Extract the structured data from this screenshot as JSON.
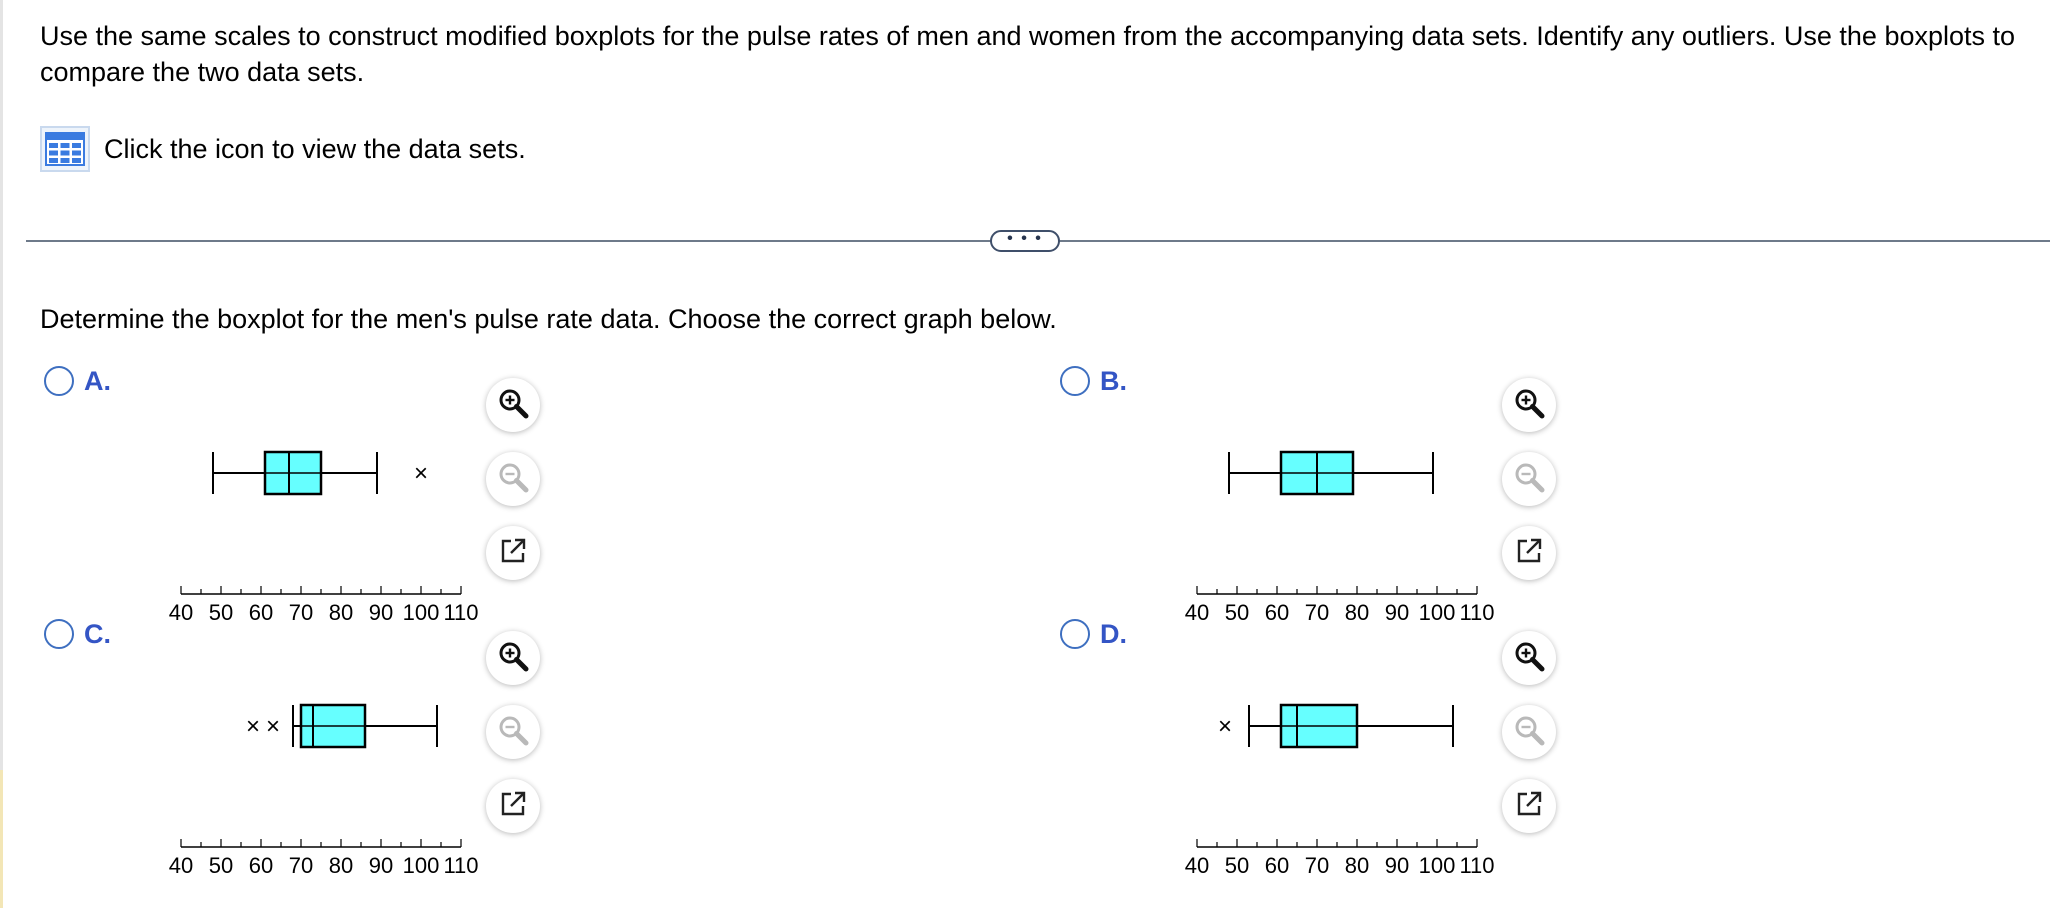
{
  "question": {
    "prompt": "Use the same scales to construct modified boxplots for the pulse rates of men and women from the accompanying data sets. Identify any outliers. Use the boxplots to compare the two data sets.",
    "dataset_link": "Click the icon to view the data sets.",
    "more_indicator": "• • •",
    "part_prompt": "Determine the boxplot for the men's pulse rate data. Choose the correct graph below."
  },
  "axis": {
    "ticks": [
      "40",
      "50",
      "60",
      "70",
      "80",
      "90",
      "100",
      "110"
    ],
    "min": 40,
    "max": 110,
    "minor_step": 5
  },
  "colors": {
    "box_fill": "#66ffff",
    "radio": "#3e6fc0",
    "letter": "#3455c5"
  },
  "tools": [
    "zoom-in-icon",
    "zoom-out-icon",
    "pop-out-icon"
  ],
  "options": [
    {
      "letter": "A.",
      "box": {
        "whisker_low": 48,
        "q1": 61,
        "median": 67,
        "q3": 75,
        "whisker_high": 89
      },
      "outliers": [
        100
      ]
    },
    {
      "letter": "B.",
      "box": {
        "whisker_low": 48,
        "q1": 61,
        "median": 70,
        "q3": 79,
        "whisker_high": 99
      },
      "outliers": []
    },
    {
      "letter": "C.",
      "box": {
        "whisker_low": 68,
        "q1": 70,
        "median": 73,
        "q3": 86,
        "whisker_high": 104
      },
      "outliers": [
        58,
        63
      ]
    },
    {
      "letter": "D.",
      "box": {
        "whisker_low": 53,
        "q1": 61,
        "median": 65,
        "q3": 80,
        "whisker_high": 104
      },
      "outliers": [
        47
      ]
    }
  ]
}
